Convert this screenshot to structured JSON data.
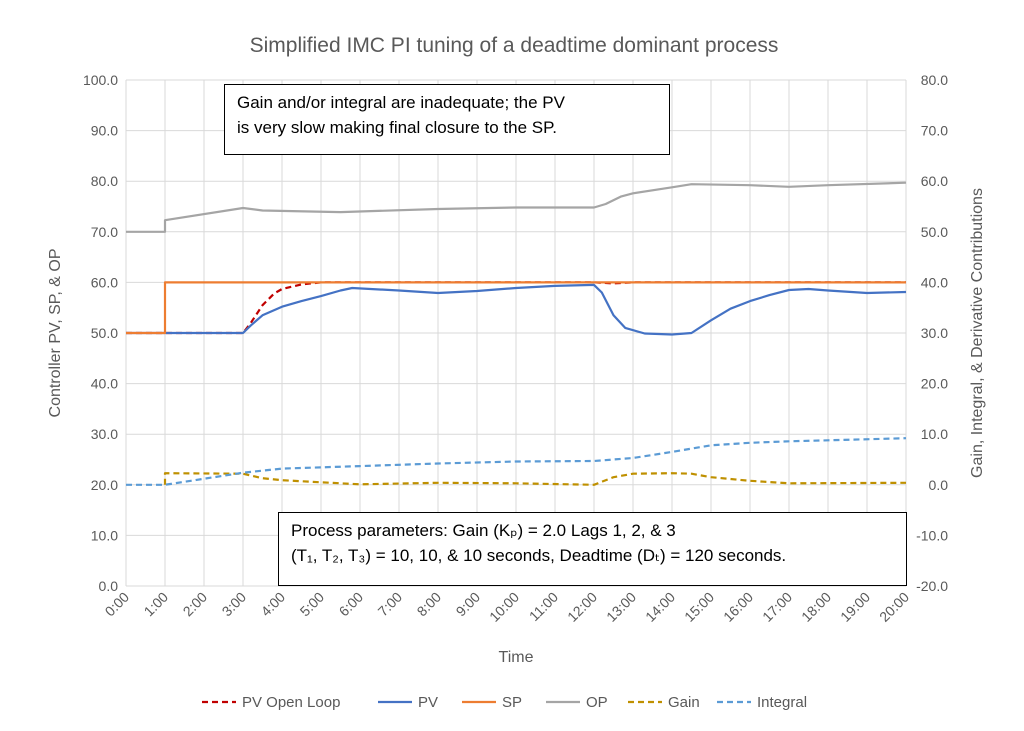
{
  "chart_data": {
    "type": "line",
    "title": "Simplified IMC PI tuning of a deadtime dominant process",
    "xlabel": "Time",
    "ylabel": "Controller PV, SP, & OP",
    "y2label": "Gain, Integral, & Derivative Contributions",
    "xlim": [
      0,
      20
    ],
    "ylim": [
      0,
      100
    ],
    "y2lim": [
      -20,
      80
    ],
    "grid": true,
    "legend": "bottom",
    "x_tick_labels": [
      "0:00",
      "1:00",
      "2:00",
      "3:00",
      "4:00",
      "5:00",
      "6:00",
      "7:00",
      "8:00",
      "9:00",
      "10:00",
      "11:00",
      "12:00",
      "13:00",
      "14:00",
      "15:00",
      "16:00",
      "17:00",
      "18:00",
      "19:00",
      "20:00"
    ],
    "y_tick_labels": [
      "0.0",
      "10.0",
      "20.0",
      "30.0",
      "40.0",
      "50.0",
      "60.0",
      "70.0",
      "80.0",
      "90.0",
      "100.0"
    ],
    "y2_tick_labels": [
      "-20.0",
      "-10.0",
      "0.0",
      "10.0",
      "20.0",
      "30.0",
      "40.0",
      "50.0",
      "60.0",
      "70.0",
      "80.0"
    ],
    "series": [
      {
        "name": "PV Open Loop",
        "axis": "left",
        "color": "#C00000",
        "dash": true,
        "x": [
          0,
          3,
          3.2,
          3.5,
          3.8,
          4,
          4.5,
          5,
          12,
          12.5,
          13,
          20
        ],
        "y": [
          50,
          50,
          52,
          55.5,
          57.8,
          58.7,
          59.6,
          60,
          60,
          59.8,
          60,
          60
        ]
      },
      {
        "name": "PV",
        "axis": "left",
        "color": "#4472C4",
        "dash": false,
        "x": [
          0,
          3,
          3.2,
          3.5,
          4,
          4.5,
          5,
          5.5,
          5.8,
          7,
          8,
          9,
          10,
          11,
          12,
          12.2,
          12.5,
          12.8,
          13.3,
          14,
          14.5,
          15,
          15.5,
          16,
          16.5,
          17,
          17.5,
          18,
          19,
          20
        ],
        "y": [
          50,
          50,
          51.5,
          53.5,
          55.2,
          56.3,
          57.3,
          58.4,
          58.9,
          58.4,
          57.9,
          58.3,
          58.9,
          59.3,
          59.5,
          58,
          53.5,
          51,
          49.9,
          49.7,
          50,
          52.5,
          54.8,
          56.3,
          57.5,
          58.5,
          58.7,
          58.4,
          57.9,
          58.1
        ]
      },
      {
        "name": "SP",
        "axis": "left",
        "color": "#ED7D31",
        "dash": false,
        "x": [
          0,
          1,
          1,
          20
        ],
        "y": [
          50,
          50,
          60,
          60
        ]
      },
      {
        "name": "OP",
        "axis": "left",
        "color": "#A5A5A5",
        "dash": false,
        "x": [
          0,
          1,
          1,
          3,
          3.5,
          5.5,
          8,
          10,
          12,
          12.3,
          12.7,
          13,
          14,
          14.5,
          16,
          17,
          18,
          20
        ],
        "y": [
          70,
          70,
          72.3,
          74.7,
          74.2,
          73.9,
          74.5,
          74.8,
          74.8,
          75.5,
          77,
          77.6,
          78.8,
          79.4,
          79.2,
          78.9,
          79.2,
          79.7
        ]
      },
      {
        "name": "Gain",
        "axis": "right",
        "color": "#BF9000",
        "dash": true,
        "x": [
          1,
          1,
          3,
          3.5,
          4,
          5,
          6,
          8,
          10,
          12,
          12.5,
          13,
          14,
          14.5,
          15,
          16,
          17,
          20
        ],
        "y": [
          0,
          2.3,
          2.2,
          1.3,
          0.9,
          0.5,
          0.1,
          0.4,
          0.3,
          0,
          1.5,
          2.2,
          2.3,
          2.2,
          1.5,
          0.8,
          0.3,
          0.4
        ]
      },
      {
        "name": "Integral",
        "axis": "right",
        "color": "#5B9BD5",
        "dash": true,
        "x": [
          0,
          1,
          3,
          4,
          6,
          8,
          10,
          12,
          13,
          14,
          15,
          16,
          17,
          18,
          20
        ],
        "y": [
          0,
          0,
          2.4,
          3.2,
          3.7,
          4.2,
          4.6,
          4.7,
          5.3,
          6.5,
          7.8,
          8.3,
          8.6,
          8.8,
          9.2
        ]
      }
    ],
    "annotations": [
      "Gain and/or integral are inadequate; the PV is very slow making final closure to the SP.",
      "Process parameters:  Gain (Kₚ) = 2.0 Lags 1, 2, & 3 (T₁, T₂, T₃) = 10, 10, & 10 seconds, Deadtime (Dₜ) = 120 seconds."
    ]
  },
  "notes": {
    "top_line1": "Gain and/or integral are inadequate; the PV",
    "top_line2": "is very slow making final closure to the SP.",
    "bottom_line1": "Process parameters:  Gain (Kₚ) = 2.0 Lags 1, 2, & 3",
    "bottom_line2": "(T₁, T₂, T₃) = 10, 10, & 10 seconds, Deadtime (Dₜ) = 120 seconds."
  }
}
